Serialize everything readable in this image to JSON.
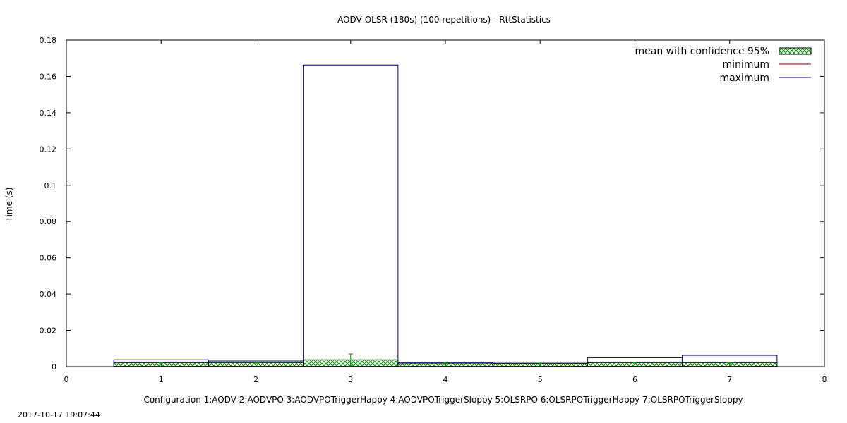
{
  "chart_data": {
    "type": "bar",
    "title": "AODV-OLSR (180s) (100 repetitions) - RttStatistics",
    "xlabel": "Configuration 1:AODV  2:AODVPO  3:AODVPOTriggerHappy  4:AODVPOTriggerSloppy  5:OLSRPO  6:OLSRPOTriggerHappy  7:OLSRPOTriggerSloppy",
    "ylabel": "Time (s)",
    "xlim": [
      0,
      8
    ],
    "ylim": [
      0,
      0.18
    ],
    "xticks": [
      "0",
      "1",
      "2",
      "3",
      "4",
      "5",
      "6",
      "7",
      "8"
    ],
    "yticks": [
      "0",
      "0.02",
      "0.04",
      "0.06",
      "0.08",
      "0.1",
      "0.12",
      "0.14",
      "0.16",
      "0.18"
    ],
    "categories": [
      "1",
      "2",
      "3",
      "4",
      "5",
      "6",
      "7"
    ],
    "series": [
      {
        "name": "mean with confidence 95%",
        "values": [
          0.0021,
          0.0021,
          0.0038,
          0.0019,
          0.0018,
          0.0021,
          0.0021
        ],
        "ci_low": [
          0.0019,
          0.0019,
          0.0005,
          0.0017,
          0.0016,
          0.0019,
          0.0019
        ],
        "ci_high": [
          0.0023,
          0.0023,
          0.007,
          0.0021,
          0.002,
          0.0023,
          0.0023
        ]
      },
      {
        "name": "minimum",
        "values": [
          0.0002,
          0.0002,
          0.0002,
          0.0002,
          0.0002,
          0.0002,
          0.0002
        ]
      },
      {
        "name": "maximum",
        "values": [
          0.0038,
          0.0031,
          0.1663,
          0.0023,
          0.0019,
          0.0049,
          0.0062
        ]
      }
    ],
    "legend_position": "top-right",
    "grid": false,
    "colors": {
      "mean": "#009900",
      "minimum": "#8b0000",
      "maximum": "#00008b",
      "axis": "#000000"
    }
  },
  "timestamp": "2017-10-17 19:07:44"
}
